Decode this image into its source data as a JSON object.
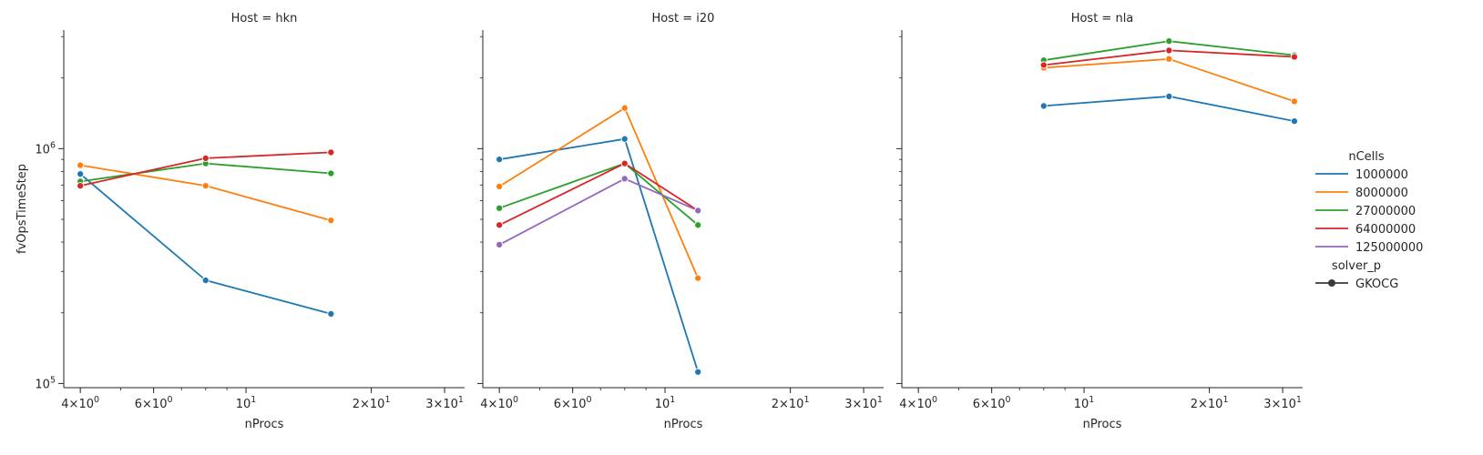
{
  "chart_data": {
    "type": "line",
    "x_scale": "log",
    "y_scale": "log",
    "xlabel": "nProcs",
    "ylabel": "fvOpsTimeStep",
    "xlim": [
      3.65,
      33.5
    ],
    "ylim": [
      96000,
      3200000
    ],
    "x_ticks": [
      {
        "value": 4,
        "base": "4",
        "exp": "0"
      },
      {
        "value": 6,
        "base": "6",
        "exp": "0"
      },
      {
        "value": 10,
        "base": "10",
        "exp": "1"
      },
      {
        "value": 20,
        "base": "2",
        "exp": "1"
      },
      {
        "value": 30,
        "base": "3",
        "exp": "1"
      }
    ],
    "y_ticks": [
      {
        "value": 100000,
        "base": "10",
        "exp": "5"
      },
      {
        "value": 1000000,
        "base": "10",
        "exp": "6"
      }
    ],
    "legend": {
      "title": "nCells",
      "entries": [
        {
          "label": "1000000",
          "color": "#1f77b4"
        },
        {
          "label": "8000000",
          "color": "#ff7f0e"
        },
        {
          "label": "27000000",
          "color": "#2ca02c"
        },
        {
          "label": "64000000",
          "color": "#d62728"
        },
        {
          "label": "125000000",
          "color": "#9467bd"
        }
      ],
      "style_title": "solver_p",
      "style_entries": [
        {
          "label": "GKOCG",
          "marker": "circle"
        }
      ]
    },
    "panels": [
      {
        "title": "Host = hkn",
        "series": [
          {
            "name": "1000000",
            "color": "#1f77b4",
            "x": [
              4,
              8,
              16
            ],
            "y": [
              780000,
              275000,
              198000
            ]
          },
          {
            "name": "8000000",
            "color": "#ff7f0e",
            "x": [
              4,
              8,
              16
            ],
            "y": [
              850000,
              695000,
              495000
            ]
          },
          {
            "name": "27000000",
            "color": "#2ca02c",
            "x": [
              4,
              8,
              16
            ],
            "y": [
              725000,
              865000,
              785000
            ]
          },
          {
            "name": "64000000",
            "color": "#d62728",
            "x": [
              4,
              8,
              16
            ],
            "y": [
              695000,
              910000,
              965000
            ]
          }
        ]
      },
      {
        "title": "Host = i20",
        "series": [
          {
            "name": "1000000",
            "color": "#1f77b4",
            "x": [
              4,
              8,
              12
            ],
            "y": [
              900000,
              1100000,
              112000
            ]
          },
          {
            "name": "8000000",
            "color": "#ff7f0e",
            "x": [
              4,
              8,
              12
            ],
            "y": [
              690000,
              1490000,
              281000
            ]
          },
          {
            "name": "27000000",
            "color": "#2ca02c",
            "x": [
              4,
              8,
              12
            ],
            "y": [
              558000,
              865000,
              473000
            ]
          },
          {
            "name": "64000000",
            "color": "#d62728",
            "x": [
              4,
              8,
              12
            ],
            "y": [
              473000,
              865000,
              545000
            ]
          },
          {
            "name": "125000000",
            "color": "#9467bd",
            "x": [
              4,
              8,
              12
            ],
            "y": [
              390000,
              745000,
              545000
            ]
          }
        ]
      },
      {
        "title": "Host = nla",
        "series": [
          {
            "name": "1000000",
            "color": "#1f77b4",
            "x": [
              8,
              16,
              32
            ],
            "y": [
              1520000,
              1670000,
              1310000
            ]
          },
          {
            "name": "8000000",
            "color": "#ff7f0e",
            "x": [
              8,
              16,
              32
            ],
            "y": [
              2210000,
              2410000,
              1590000
            ]
          },
          {
            "name": "27000000",
            "color": "#2ca02c",
            "x": [
              8,
              16,
              32
            ],
            "y": [
              2380000,
              2870000,
              2500000
            ]
          },
          {
            "name": "64000000",
            "color": "#d62728",
            "x": [
              8,
              16,
              32
            ],
            "y": [
              2270000,
              2620000,
              2460000
            ]
          }
        ]
      }
    ]
  }
}
